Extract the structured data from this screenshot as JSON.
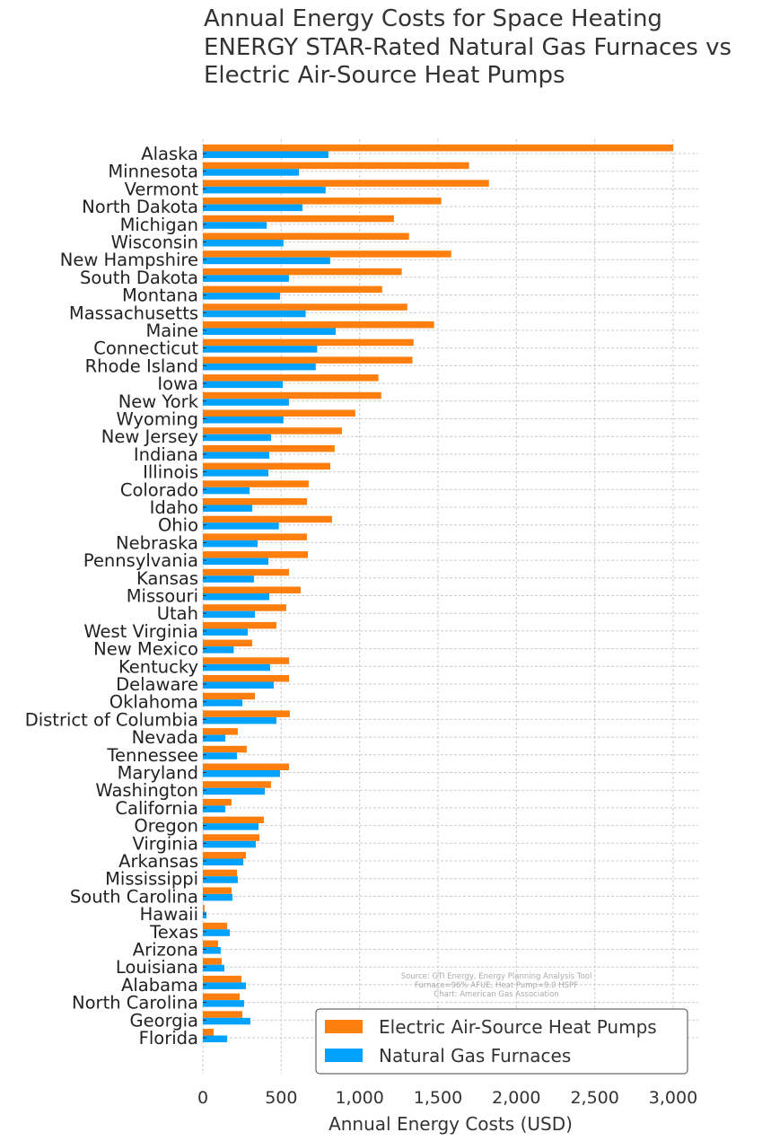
{
  "chart_data": {
    "type": "bar",
    "orientation": "horizontal",
    "title": [
      "Annual Energy Costs for Space Heating",
      "ENERGY STAR-Rated Natural Gas Furnaces vs",
      "Electric Air-Source Heat Pumps"
    ],
    "xlabel": "Annual Energy Costs (USD)",
    "ylabel": "",
    "xlim": [
      0,
      3150
    ],
    "xticks": [
      0,
      500,
      1000,
      1500,
      2000,
      2500,
      3000
    ],
    "xtick_labels": [
      "0",
      "500",
      "1,000",
      "1,500",
      "2,000",
      "2,500",
      "3,000"
    ],
    "grid": true,
    "legend_placement": "bottom-right",
    "annotation": [
      "Source: GTI Energy, Energy Planning Analysis Tool",
      "Furnace=96% AFUE, Heat Pump=9.0 HSPF",
      "Chart: American Gas Association"
    ],
    "categories": [
      "Alaska",
      "Minnesota",
      "Vermont",
      "North Dakota",
      "Michigan",
      "Wisconsin",
      "New Hampshire",
      "South Dakota",
      "Montana",
      "Massachusetts",
      "Maine",
      "Connecticut",
      "Rhode Island",
      "Iowa",
      "New York",
      "Wyoming",
      "New Jersey",
      "Indiana",
      "Illinois",
      "Colorado",
      "Idaho",
      "Ohio",
      "Nebraska",
      "Pennsylvania",
      "Kansas",
      "Missouri",
      "Utah",
      "West Virginia",
      "New Mexico",
      "Kentucky",
      "Delaware",
      "Oklahoma",
      "District of Columbia",
      "Nevada",
      "Tennessee",
      "Maryland",
      "Washington",
      "California",
      "Oregon",
      "Virginia",
      "Arkansas",
      "Mississippi",
      "South Carolina",
      "Hawaii",
      "Texas",
      "Arizona",
      "Louisiana",
      "Alabama",
      "North Carolina",
      "Georgia",
      "Florida"
    ],
    "series": [
      {
        "name": "Electric Air-Source Heat Pumps",
        "color": "#ff7f0e",
        "values": [
          3000,
          1698,
          1825,
          1521,
          1219,
          1315,
          1584,
          1269,
          1144,
          1304,
          1475,
          1344,
          1337,
          1120,
          1138,
          972,
          887,
          841,
          813,
          675,
          664,
          824,
          664,
          670,
          550,
          624,
          532,
          469,
          315,
          550,
          550,
          332,
          555,
          223,
          280,
          550,
          435,
          183,
          389,
          361,
          275,
          218,
          183,
          11,
          155,
          97,
          120,
          246,
          235,
          252,
          69
        ]
      },
      {
        "name": "Natural Gas Furnaces",
        "color": "#00a2ff",
        "values": [
          801,
          613,
          783,
          635,
          407,
          514,
          812,
          549,
          492,
          656,
          847,
          729,
          720,
          510,
          549,
          514,
          435,
          424,
          418,
          298,
          315,
          485,
          349,
          418,
          326,
          424,
          332,
          286,
          197,
          429,
          452,
          252,
          469,
          143,
          218,
          492,
          395,
          143,
          355,
          338,
          258,
          223,
          189,
          23,
          172,
          114,
          137,
          275,
          263,
          303,
          155
        ]
      }
    ]
  }
}
